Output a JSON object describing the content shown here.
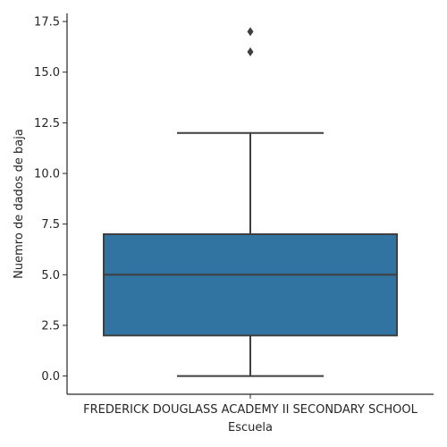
{
  "chart_data": {
    "type": "box",
    "xlabel": "Escuela",
    "ylabel": "Nuemro de dados de baja",
    "categories": [
      "FREDERICK DOUGLASS ACADEMY II SECONDARY SCHOOL"
    ],
    "boxes": [
      {
        "category": "FREDERICK DOUGLASS ACADEMY II SECONDARY SCHOOL",
        "whisker_low": 0,
        "q1": 2,
        "median": 5,
        "q3": 7,
        "whisker_high": 12,
        "outliers": [
          16,
          17
        ]
      }
    ],
    "ylim": [
      -0.9,
      17.9
    ],
    "yticks": [
      "0.0",
      "2.5",
      "5.0",
      "7.5",
      "10.0",
      "12.5",
      "15.0",
      "17.5"
    ],
    "ytick_values": [
      0,
      2.5,
      5,
      7.5,
      10,
      12.5,
      15,
      17.5
    ],
    "grid": false,
    "colors": {
      "box_fill": "#3274a1",
      "line": "#3f3f3f",
      "axis": "#262626"
    }
  }
}
